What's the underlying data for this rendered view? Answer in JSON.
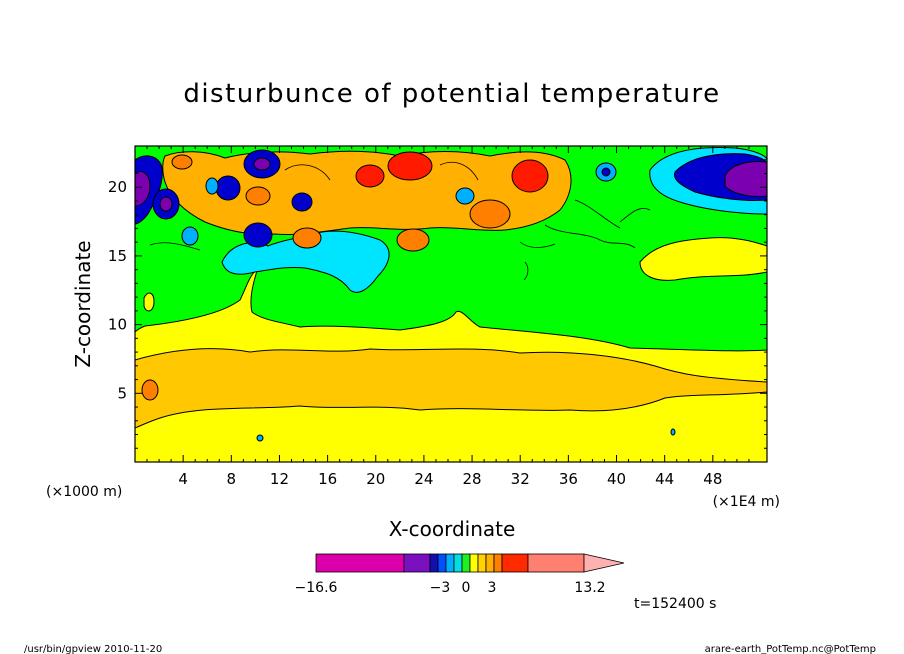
{
  "chart_data": {
    "type": "heatmap",
    "title": "disturbunce of potential temperature",
    "xlabel": "X-coordinate",
    "ylabel": "Z-coordinate",
    "x_unit_left": "(×1000 m)",
    "x_unit_right": "(×1E4 m)",
    "xlim": [
      0,
      52.5
    ],
    "ylim": [
      0,
      23
    ],
    "x_ticks": [
      "4",
      "8",
      "12",
      "16",
      "20",
      "24",
      "28",
      "32",
      "36",
      "40",
      "44",
      "48"
    ],
    "y_ticks": [
      "5",
      "10",
      "15",
      "20"
    ],
    "time_label": "t=152400 s",
    "colorbar": {
      "labels": [
        "−16.6",
        "−3",
        "0",
        "3",
        "13.2"
      ],
      "min": -16.6,
      "max": 13.2,
      "colors": [
        "#dd00aa",
        "#7a10c0",
        "#1010b0",
        "#0050ff",
        "#00b0ff",
        "#00e0e0",
        "#20f020",
        "#ffff00",
        "#ffd200",
        "#ffb000",
        "#ff8000",
        "#ff2a00",
        "#ff8070",
        "#ffb0b0"
      ]
    },
    "fill_colors": {
      "yellow": "#ffff00",
      "orange": "#ffc800",
      "green": "#00ff00",
      "cyan": "#00e5ff",
      "sky": "#00b0ff",
      "blue": "#0000cc",
      "navy": "#00008b",
      "purple": "#7a00b0",
      "red": "#ff1a00",
      "darkorange": "#ff8000"
    }
  },
  "footer": {
    "left": "/usr/bin/gpview 2010-11-20",
    "right": "arare-earth_PotTemp.nc@PotTemp"
  }
}
